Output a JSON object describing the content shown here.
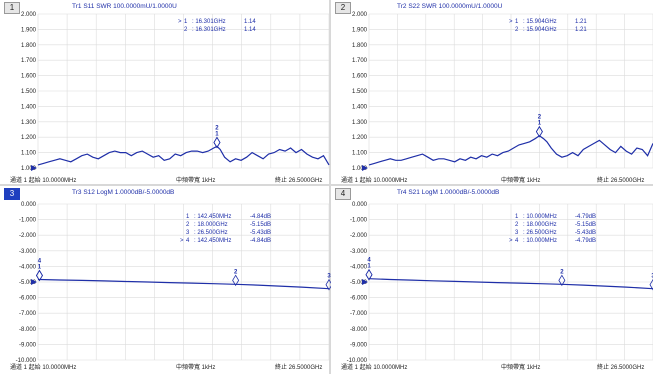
{
  "footer": {
    "start": "通道 1 起始 10.0000MHz",
    "ifbw": "中頻帶寬 1kHz",
    "stop": "終止 26.5000GHz"
  },
  "panels": [
    {
      "number": "1",
      "title": "Tr1 S11 SWR 100.0000mU/1.0000U",
      "markers": [
        {
          "active": ">",
          "id": "1",
          "freq": ": 16.301GHz",
          "value": "1.14"
        },
        {
          "active": "",
          "id": "2",
          "freq": ": 16.301GHz",
          "value": "1.14"
        }
      ]
    },
    {
      "number": "2",
      "title": "Tr2 S22 SWR 100.0000mU/1.0000U",
      "markers": [
        {
          "active": ">",
          "id": "1",
          "freq": ": 15.904GHz",
          "value": "1.21"
        },
        {
          "active": "",
          "id": "2",
          "freq": ": 15.904GHz",
          "value": "1.21"
        }
      ]
    },
    {
      "number": "3",
      "title": "Tr3 S12 LogM 1.0000dB/-5.0000dB",
      "markers": [
        {
          "active": "",
          "id": "1",
          "freq": ": 142.450MHz",
          "value": "-4.84dB"
        },
        {
          "active": "",
          "id": "2",
          "freq": ": 18.000GHz",
          "value": "-5.15dB"
        },
        {
          "active": "",
          "id": "3",
          "freq": ": 26.500GHz",
          "value": "-5.43dB"
        },
        {
          "active": ">",
          "id": "4",
          "freq": ": 142.450MHz",
          "value": "-4.84dB"
        }
      ]
    },
    {
      "number": "4",
      "title": "Tr4 S21 LogM 1.0000dB/-5.0000dB",
      "markers": [
        {
          "active": "",
          "id": "1",
          "freq": ": 10.000MHz",
          "value": "-4.79dB"
        },
        {
          "active": "",
          "id": "2",
          "freq": ": 18.000GHz",
          "value": "-5.15dB"
        },
        {
          "active": "",
          "id": "3",
          "freq": ": 26.500GHz",
          "value": "-5.43dB"
        },
        {
          "active": ">",
          "id": "4",
          "freq": ": 10.000MHz",
          "value": "-4.79dB"
        }
      ]
    }
  ],
  "chart_data": [
    {
      "type": "line",
      "title": "Tr1 S11 SWR 100.0000mU/1.0000U",
      "ylim": [
        1.0,
        2.0
      ],
      "yticks": [
        "2.000",
        "1.900",
        "1.800",
        "1.700",
        "1.600",
        "1.500",
        "1.400",
        "1.300",
        "1.200",
        "1.100",
        "1.000"
      ],
      "xlim": [
        0.01,
        26.5
      ],
      "x_unit": "GHz",
      "series": [
        {
          "color": "#1f2fa8",
          "x": [
            0.01,
            0.5,
            1.0,
            1.5,
            2.0,
            2.5,
            3.0,
            3.5,
            4.0,
            4.5,
            5.0,
            5.5,
            6.0,
            6.5,
            7.0,
            7.5,
            8.0,
            8.5,
            9.0,
            9.5,
            10.0,
            10.5,
            11.0,
            11.5,
            12.0,
            12.5,
            13.0,
            13.5,
            14.0,
            14.5,
            15.0,
            15.5,
            16.0,
            16.3,
            16.6,
            17.0,
            17.5,
            18.0,
            18.5,
            19.0,
            19.5,
            20.0,
            20.5,
            21.0,
            21.5,
            22.0,
            22.5,
            23.0,
            23.5,
            24.0,
            24.5,
            25.0,
            25.5,
            26.0,
            26.5
          ],
          "y": [
            1.02,
            1.03,
            1.04,
            1.05,
            1.06,
            1.05,
            1.04,
            1.06,
            1.08,
            1.09,
            1.07,
            1.06,
            1.08,
            1.1,
            1.11,
            1.1,
            1.1,
            1.08,
            1.1,
            1.11,
            1.09,
            1.07,
            1.08,
            1.05,
            1.06,
            1.09,
            1.08,
            1.1,
            1.11,
            1.11,
            1.1,
            1.11,
            1.13,
            1.14,
            1.12,
            1.07,
            1.04,
            1.06,
            1.05,
            1.07,
            1.1,
            1.08,
            1.06,
            1.09,
            1.1,
            1.12,
            1.11,
            1.13,
            1.1,
            1.12,
            1.09,
            1.07,
            1.06,
            1.08,
            1.02
          ]
        }
      ],
      "markers": [
        {
          "id": "1",
          "x": 16.301,
          "y": 1.14
        },
        {
          "id": "2",
          "x": 16.301,
          "y": 1.14
        }
      ]
    },
    {
      "type": "line",
      "title": "Tr2 S22 SWR 100.0000mU/1.0000U",
      "ylim": [
        1.0,
        2.0
      ],
      "yticks": [
        "2.000",
        "1.900",
        "1.800",
        "1.700",
        "1.600",
        "1.500",
        "1.400",
        "1.300",
        "1.200",
        "1.100",
        "1.000"
      ],
      "xlim": [
        0.01,
        26.5
      ],
      "x_unit": "GHz",
      "series": [
        {
          "color": "#1f2fa8",
          "x": [
            0.01,
            0.5,
            1.0,
            1.5,
            2.0,
            2.5,
            3.0,
            3.5,
            4.0,
            4.5,
            5.0,
            5.5,
            6.0,
            6.5,
            7.0,
            7.5,
            8.0,
            8.5,
            9.0,
            9.5,
            10.0,
            10.5,
            11.0,
            11.5,
            12.0,
            12.5,
            13.0,
            13.5,
            14.0,
            14.5,
            15.0,
            15.5,
            15.9,
            16.3,
            16.6,
            17.0,
            17.5,
            18.0,
            18.5,
            19.0,
            19.5,
            20.0,
            20.5,
            21.0,
            21.5,
            22.0,
            22.5,
            23.0,
            23.5,
            24.0,
            24.5,
            25.0,
            25.5,
            26.0,
            26.5
          ],
          "y": [
            1.02,
            1.03,
            1.04,
            1.05,
            1.06,
            1.05,
            1.05,
            1.06,
            1.07,
            1.08,
            1.09,
            1.07,
            1.05,
            1.06,
            1.06,
            1.05,
            1.04,
            1.06,
            1.05,
            1.07,
            1.06,
            1.08,
            1.07,
            1.09,
            1.08,
            1.1,
            1.11,
            1.13,
            1.15,
            1.16,
            1.17,
            1.19,
            1.21,
            1.19,
            1.17,
            1.13,
            1.09,
            1.07,
            1.08,
            1.1,
            1.08,
            1.12,
            1.14,
            1.16,
            1.18,
            1.15,
            1.12,
            1.1,
            1.14,
            1.11,
            1.09,
            1.13,
            1.12,
            1.08,
            1.16
          ]
        }
      ],
      "markers": [
        {
          "id": "1",
          "x": 15.904,
          "y": 1.21
        },
        {
          "id": "2",
          "x": 15.904,
          "y": 1.21
        }
      ]
    },
    {
      "type": "line",
      "title": "Tr3 S12 LogM 1.0000dB/-5.0000dB",
      "ylim": [
        -10.0,
        0.0
      ],
      "yticks": [
        "0.000",
        "-1.000",
        "-2.000",
        "-3.000",
        "-4.000",
        "-5.000",
        "-6.000",
        "-7.000",
        "-8.000",
        "-9.000",
        "-10.000"
      ],
      "xlim": [
        0.01,
        26.5
      ],
      "x_unit": "GHz",
      "series": [
        {
          "color": "#1f2fa8",
          "x": [
            0.01,
            0.142,
            2.0,
            4.0,
            6.0,
            8.0,
            10.0,
            12.0,
            14.0,
            16.0,
            18.0,
            20.0,
            22.0,
            24.0,
            26.5
          ],
          "y": [
            -4.84,
            -4.84,
            -4.87,
            -4.9,
            -4.93,
            -4.97,
            -5.0,
            -5.04,
            -5.07,
            -5.11,
            -5.15,
            -5.2,
            -5.26,
            -5.33,
            -5.43
          ]
        }
      ],
      "markers": [
        {
          "id": "1",
          "x": 0.14245,
          "y": -4.84
        },
        {
          "id": "2",
          "x": 18.0,
          "y": -5.15
        },
        {
          "id": "3",
          "x": 26.5,
          "y": -5.43
        },
        {
          "id": "4",
          "x": 0.14245,
          "y": -4.84
        }
      ]
    },
    {
      "type": "line",
      "title": "Tr4 S21 LogM 1.0000dB/-5.0000dB",
      "ylim": [
        -10.0,
        0.0
      ],
      "yticks": [
        "0.000",
        "-1.000",
        "-2.000",
        "-3.000",
        "-4.000",
        "-5.000",
        "-6.000",
        "-7.000",
        "-8.000",
        "-9.000",
        "-10.000"
      ],
      "xlim": [
        0.01,
        26.5
      ],
      "x_unit": "GHz",
      "series": [
        {
          "color": "#1f2fa8",
          "x": [
            0.01,
            2.0,
            4.0,
            6.0,
            8.0,
            10.0,
            12.0,
            14.0,
            16.0,
            18.0,
            20.0,
            22.0,
            24.0,
            26.5
          ],
          "y": [
            -4.79,
            -4.84,
            -4.88,
            -4.92,
            -4.96,
            -5.0,
            -5.04,
            -5.07,
            -5.11,
            -5.15,
            -5.2,
            -5.26,
            -5.33,
            -5.43
          ]
        }
      ],
      "markers": [
        {
          "id": "1",
          "x": 0.01,
          "y": -4.79
        },
        {
          "id": "2",
          "x": 18.0,
          "y": -5.15
        },
        {
          "id": "3",
          "x": 26.5,
          "y": -5.43
        },
        {
          "id": "4",
          "x": 0.01,
          "y": -4.79
        }
      ]
    }
  ]
}
